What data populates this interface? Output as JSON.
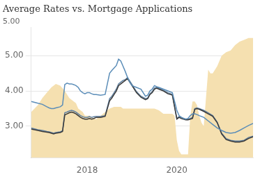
{
  "chart_data": {
    "type": "line",
    "title": "Average Rates vs. Mortgage Applications",
    "annotations": [
      {
        "text": "5.00"
      }
    ],
    "xlim": [
      2016.75,
      2021.7
    ],
    "xticks": [
      2018,
      2020
    ],
    "ylim": [
      2.1,
      5.8
    ],
    "yticks": [
      {
        "value": 3.0,
        "label": "3.00"
      },
      {
        "value": 4.0,
        "label": "4.00"
      },
      {
        "value": 5.0,
        "label": "5.00"
      }
    ],
    "grid": "y",
    "series": [
      {
        "type": "area",
        "color": "#f5e0b0",
        "x": [
          2016.75,
          2016.9,
          2017.0,
          2017.1,
          2017.2,
          2017.3,
          2017.4,
          2017.5,
          2017.6,
          2017.7,
          2017.75,
          2017.8,
          2017.9,
          2017.95,
          2018.0,
          2018.05,
          2018.1,
          2018.2,
          2018.3,
          2018.4,
          2018.5,
          2018.6,
          2018.7,
          2018.75,
          2018.8,
          2018.9,
          2019.0,
          2019.1,
          2019.2,
          2019.3,
          2019.4,
          2019.5,
          2019.6,
          2019.65,
          2019.7,
          2019.75,
          2019.8,
          2019.9,
          2019.95,
          2020.0,
          2020.05,
          2020.1,
          2020.15,
          2020.2,
          2020.25,
          2020.3,
          2020.35,
          2020.4,
          2020.45,
          2020.5,
          2020.55,
          2020.6,
          2020.65,
          2020.7,
          2020.75,
          2020.8,
          2020.9,
          2021.0,
          2021.1,
          2021.2,
          2021.3,
          2021.4,
          2021.5,
          2021.6,
          2021.7
        ],
        "values": [
          3.4,
          3.6,
          3.8,
          3.95,
          4.1,
          4.2,
          4.15,
          4.0,
          3.8,
          3.7,
          3.65,
          3.5,
          3.4,
          3.3,
          3.3,
          3.3,
          3.25,
          3.2,
          3.3,
          3.4,
          3.5,
          3.55,
          3.55,
          3.55,
          3.5,
          3.5,
          3.5,
          3.5,
          3.5,
          3.5,
          3.5,
          3.5,
          3.45,
          3.4,
          3.35,
          3.35,
          3.35,
          3.35,
          3.3,
          2.6,
          2.3,
          2.2,
          2.2,
          2.2,
          2.2,
          3.3,
          3.7,
          3.7,
          3.6,
          3.3,
          3.1,
          3.0,
          3.8,
          4.6,
          4.5,
          4.5,
          4.7,
          5.0,
          5.1,
          5.15,
          5.3,
          5.4,
          5.45,
          5.5,
          5.5
        ]
      },
      {
        "type": "line",
        "color": "#5b8db8",
        "x": [
          2016.75,
          2016.9,
          2017.0,
          2017.1,
          2017.15,
          2017.2,
          2017.25,
          2017.3,
          2017.4,
          2017.45,
          2017.5,
          2017.55,
          2017.6,
          2017.65,
          2017.7,
          2017.75,
          2017.8,
          2017.85,
          2017.9,
          2017.95,
          2018.0,
          2018.05,
          2018.1,
          2018.15,
          2018.2,
          2018.3,
          2018.4,
          2018.5,
          2018.55,
          2018.6,
          2018.65,
          2018.7,
          2018.75,
          2018.8,
          2018.85,
          2018.9,
          2018.95,
          2019.0,
          2019.1,
          2019.2,
          2019.3,
          2019.35,
          2019.4,
          2019.45,
          2019.5,
          2019.55,
          2019.6,
          2019.7,
          2019.8,
          2019.9,
          2020.0,
          2020.05,
          2020.1,
          2020.15,
          2020.2,
          2020.25,
          2020.3,
          2020.35,
          2020.4,
          2020.45,
          2020.5,
          2020.6,
          2020.7,
          2020.8,
          2020.9,
          2021.0,
          2021.1,
          2021.2,
          2021.3,
          2021.4,
          2021.5,
          2021.6,
          2021.7
        ],
        "values": [
          3.7,
          3.65,
          3.62,
          3.55,
          3.52,
          3.5,
          3.5,
          3.52,
          3.55,
          3.6,
          4.18,
          4.22,
          4.2,
          4.2,
          4.18,
          4.15,
          4.1,
          4.0,
          3.95,
          3.92,
          3.95,
          3.95,
          3.92,
          3.9,
          3.9,
          3.88,
          3.9,
          4.5,
          4.58,
          4.65,
          4.72,
          4.9,
          4.85,
          4.7,
          4.55,
          4.38,
          4.25,
          4.15,
          4.1,
          4.05,
          3.85,
          3.88,
          4.0,
          4.05,
          4.15,
          4.12,
          4.1,
          4.05,
          4.0,
          3.95,
          3.45,
          3.3,
          3.25,
          3.22,
          3.2,
          3.22,
          3.3,
          3.35,
          3.35,
          3.33,
          3.3,
          3.25,
          3.15,
          3.05,
          2.95,
          2.88,
          2.82,
          2.8,
          2.82,
          2.88,
          2.95,
          3.02,
          3.08
        ]
      },
      {
        "type": "line",
        "color": "#3a3a3a",
        "x": [
          2016.75,
          2016.9,
          2017.0,
          2017.1,
          2017.15,
          2017.2,
          2017.25,
          2017.3,
          2017.4,
          2017.45,
          2017.5,
          2017.55,
          2017.6,
          2017.65,
          2017.7,
          2017.75,
          2017.8,
          2017.85,
          2017.9,
          2017.95,
          2018.0,
          2018.05,
          2018.1,
          2018.15,
          2018.2,
          2018.3,
          2018.4,
          2018.5,
          2018.55,
          2018.6,
          2018.65,
          2018.7,
          2018.75,
          2018.8,
          2018.85,
          2018.9,
          2018.95,
          2019.0,
          2019.1,
          2019.2,
          2019.3,
          2019.35,
          2019.4,
          2019.45,
          2019.5,
          2019.55,
          2019.6,
          2019.7,
          2019.8,
          2019.9,
          2020.0,
          2020.05,
          2020.1,
          2020.15,
          2020.2,
          2020.25,
          2020.3,
          2020.35,
          2020.4,
          2020.45,
          2020.5,
          2020.6,
          2020.7,
          2020.8,
          2020.9,
          2021.0,
          2021.1,
          2021.2,
          2021.3,
          2021.4,
          2021.5,
          2021.6,
          2021.7
        ],
        "values": [
          2.92,
          2.88,
          2.85,
          2.83,
          2.82,
          2.8,
          2.78,
          2.8,
          2.82,
          2.85,
          3.32,
          3.35,
          3.38,
          3.4,
          3.38,
          3.35,
          3.3,
          3.25,
          3.22,
          3.2,
          3.2,
          3.22,
          3.2,
          3.22,
          3.25,
          3.25,
          3.28,
          3.72,
          3.8,
          3.9,
          4.0,
          4.15,
          4.2,
          4.25,
          4.3,
          4.35,
          4.25,
          4.15,
          3.95,
          3.82,
          3.75,
          3.78,
          3.9,
          3.95,
          4.05,
          4.08,
          4.05,
          4.0,
          3.92,
          3.88,
          3.2,
          3.25,
          3.22,
          3.2,
          3.18,
          3.18,
          3.2,
          3.22,
          3.48,
          3.5,
          3.48,
          3.42,
          3.35,
          3.28,
          3.1,
          2.78,
          2.62,
          2.58,
          2.55,
          2.55,
          2.58,
          2.65,
          2.7
        ]
      },
      {
        "type": "line",
        "color": "#6080a0",
        "x": [
          2016.75,
          2016.9,
          2017.0,
          2017.1,
          2017.15,
          2017.2,
          2017.25,
          2017.3,
          2017.4,
          2017.45,
          2017.5,
          2017.55,
          2017.6,
          2017.65,
          2017.7,
          2017.75,
          2017.8,
          2017.85,
          2017.9,
          2017.95,
          2018.0,
          2018.05,
          2018.1,
          2018.15,
          2018.2,
          2018.3,
          2018.4,
          2018.5,
          2018.55,
          2018.6,
          2018.65,
          2018.7,
          2018.75,
          2018.8,
          2018.85,
          2018.9,
          2018.95,
          2019.0,
          2019.1,
          2019.2,
          2019.3,
          2019.35,
          2019.4,
          2019.45,
          2019.5,
          2019.55,
          2019.6,
          2019.7,
          2019.8,
          2019.9,
          2020.0,
          2020.05,
          2020.1,
          2020.15,
          2020.2,
          2020.25,
          2020.3,
          2020.35,
          2020.4,
          2020.45,
          2020.5,
          2020.6,
          2020.7,
          2020.8,
          2020.9,
          2021.0,
          2021.1,
          2021.2,
          2021.3,
          2021.4,
          2021.5,
          2021.6,
          2021.7
        ],
        "values": [
          2.95,
          2.9,
          2.88,
          2.85,
          2.84,
          2.82,
          2.8,
          2.82,
          2.84,
          2.87,
          3.38,
          3.4,
          3.43,
          3.45,
          3.43,
          3.4,
          3.35,
          3.3,
          3.27,
          3.25,
          3.25,
          3.27,
          3.25,
          3.27,
          3.28,
          3.28,
          3.3,
          3.78,
          3.85,
          3.95,
          4.05,
          4.2,
          4.25,
          4.3,
          4.32,
          4.38,
          4.28,
          4.18,
          3.98,
          3.85,
          3.78,
          3.8,
          3.92,
          3.98,
          4.08,
          4.1,
          4.08,
          4.02,
          3.95,
          3.9,
          3.22,
          3.27,
          3.25,
          3.22,
          3.2,
          3.2,
          3.22,
          3.25,
          3.5,
          3.52,
          3.5,
          3.45,
          3.38,
          3.3,
          3.12,
          2.8,
          2.65,
          2.6,
          2.58,
          2.58,
          2.6,
          2.68,
          2.72
        ]
      }
    ]
  }
}
